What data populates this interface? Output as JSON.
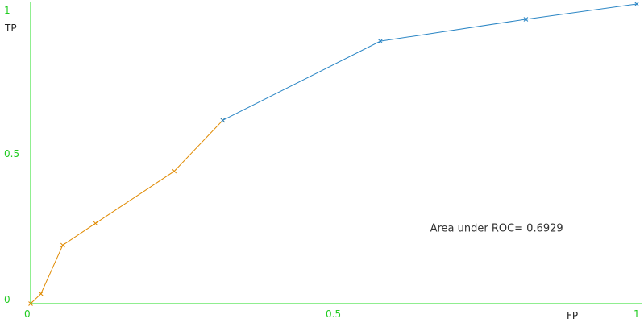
{
  "chart_data": {
    "type": "line",
    "title": "",
    "xlabel": "FP",
    "ylabel": "TP",
    "xlim": [
      0,
      1
    ],
    "ylim": [
      0,
      1
    ],
    "x_ticks": [
      {
        "value": 0,
        "label": "0"
      },
      {
        "value": 0.5,
        "label": "0.5"
      },
      {
        "value": 1,
        "label": "1"
      }
    ],
    "y_ticks": [
      {
        "value": 0,
        "label": "0"
      },
      {
        "value": 0.5,
        "label": "0.5"
      },
      {
        "value": 1,
        "label": "1"
      }
    ],
    "grid": false,
    "series": [
      {
        "color": "#e08a00",
        "points": [
          {
            "x": 0.0,
            "y": 0.0
          },
          {
            "x": 0.017,
            "y": 0.033
          },
          {
            "x": 0.053,
            "y": 0.195
          },
          {
            "x": 0.107,
            "y": 0.268
          },
          {
            "x": 0.237,
            "y": 0.442
          },
          {
            "x": 0.317,
            "y": 0.612
          }
        ]
      },
      {
        "color": "#2b86c5",
        "points": [
          {
            "x": 0.317,
            "y": 0.612
          },
          {
            "x": 0.577,
            "y": 0.876
          },
          {
            "x": 0.817,
            "y": 0.949
          },
          {
            "x": 1.0,
            "y": 1.0
          }
        ]
      }
    ],
    "annotation": {
      "text": "Area under ROC= 0.6929",
      "x": 0.659,
      "y": 0.254
    },
    "colors": {
      "axis": "#22dd22",
      "tick_label": "#22cc22",
      "title_text": "#222222"
    }
  }
}
